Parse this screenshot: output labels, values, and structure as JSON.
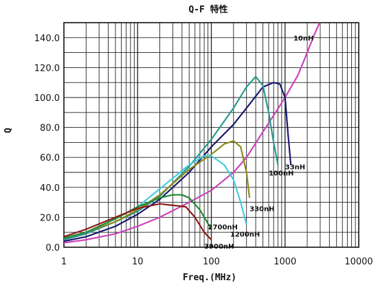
{
  "chart_data": {
    "type": "line",
    "title": "Q-F 特性",
    "xlabel": "Freq.(MHz)",
    "ylabel": "Q",
    "xscale": "log",
    "xlim": [
      1,
      10000
    ],
    "ylim": [
      0,
      150
    ],
    "xticks": [
      "1",
      "10",
      "100",
      "1000",
      "10000"
    ],
    "yticks": [
      "0.0",
      "20.0",
      "40.0",
      "60.0",
      "80.0",
      "100.0",
      "120.0",
      "140.0"
    ],
    "grid": true,
    "series": [
      {
        "name": "10nH",
        "color": "#cc44bb",
        "label_at": [
          1300,
          138
        ],
        "points": [
          [
            1,
            3
          ],
          [
            2,
            5
          ],
          [
            5,
            9
          ],
          [
            10,
            14
          ],
          [
            20,
            20
          ],
          [
            50,
            30
          ],
          [
            100,
            38
          ],
          [
            200,
            50
          ],
          [
            300,
            60
          ],
          [
            500,
            77
          ],
          [
            700,
            88
          ],
          [
            1000,
            100
          ],
          [
            1500,
            115
          ],
          [
            2000,
            130
          ],
          [
            2500,
            142
          ],
          [
            3000,
            151
          ]
        ]
      },
      {
        "name": "33nH",
        "color": "#1a1a6e",
        "label_at": [
          1000,
          52
        ],
        "points": [
          [
            1,
            4
          ],
          [
            2,
            7
          ],
          [
            5,
            14
          ],
          [
            10,
            22
          ],
          [
            20,
            32
          ],
          [
            50,
            50
          ],
          [
            100,
            67
          ],
          [
            200,
            82
          ],
          [
            300,
            93
          ],
          [
            500,
            107
          ],
          [
            700,
            110
          ],
          [
            850,
            109
          ],
          [
            1000,
            100
          ],
          [
            1100,
            75
          ],
          [
            1200,
            55
          ]
        ]
      },
      {
        "name": "100nH",
        "color": "#2a9a8e",
        "label_at": [
          600,
          48
        ],
        "points": [
          [
            1,
            5
          ],
          [
            2,
            9
          ],
          [
            5,
            17
          ],
          [
            10,
            24
          ],
          [
            20,
            34
          ],
          [
            50,
            54
          ],
          [
            100,
            72
          ],
          [
            200,
            93
          ],
          [
            300,
            107
          ],
          [
            400,
            114
          ],
          [
            500,
            108
          ],
          [
            600,
            90
          ],
          [
            700,
            70
          ],
          [
            800,
            55
          ]
        ]
      },
      {
        "name": "330nH",
        "color": "#8a8a1e",
        "label_at": [
          330,
          24
        ],
        "points": [
          [
            1,
            6
          ],
          [
            2,
            10
          ],
          [
            5,
            17
          ],
          [
            10,
            25
          ],
          [
            20,
            35
          ],
          [
            50,
            52
          ],
          [
            100,
            62
          ],
          [
            150,
            69
          ],
          [
            200,
            71
          ],
          [
            250,
            67
          ],
          [
            300,
            50
          ],
          [
            330,
            33
          ]
        ]
      },
      {
        "name": "1200nH",
        "color": "#44ccdd",
        "label_at": [
          180,
          7
        ],
        "points": [
          [
            1,
            6
          ],
          [
            2,
            10
          ],
          [
            5,
            19
          ],
          [
            10,
            27
          ],
          [
            20,
            39
          ],
          [
            50,
            55
          ],
          [
            80,
            61
          ],
          [
            100,
            61
          ],
          [
            150,
            55
          ],
          [
            200,
            45
          ],
          [
            250,
            30
          ],
          [
            300,
            15
          ]
        ]
      },
      {
        "name": "2700nH",
        "color": "#228833",
        "label_at": [
          90,
          12
        ],
        "points": [
          [
            1,
            6
          ],
          [
            2,
            10
          ],
          [
            5,
            19
          ],
          [
            10,
            27
          ],
          [
            20,
            33
          ],
          [
            30,
            35
          ],
          [
            40,
            35
          ],
          [
            50,
            33
          ],
          [
            70,
            25
          ],
          [
            100,
            12
          ]
        ]
      },
      {
        "name": "3900nH",
        "color": "#8b1a1a",
        "label_at": [
          80,
          -1
        ],
        "points": [
          [
            1,
            7
          ],
          [
            2,
            12
          ],
          [
            5,
            20
          ],
          [
            10,
            26
          ],
          [
            20,
            29
          ],
          [
            30,
            28
          ],
          [
            45,
            27
          ],
          [
            60,
            20
          ],
          [
            80,
            10
          ],
          [
            100,
            5
          ]
        ]
      }
    ]
  }
}
